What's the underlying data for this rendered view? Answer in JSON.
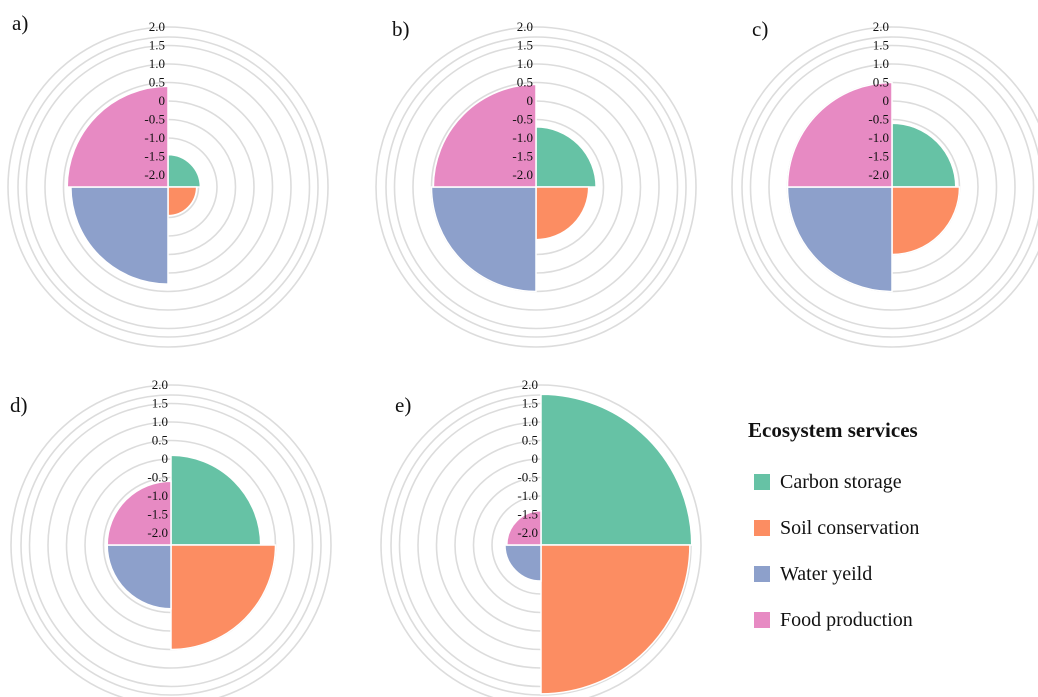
{
  "chart_data": [
    {
      "type": "polar-area",
      "panel_label": "a)",
      "categories": [
        "Carbon storage",
        "Soil conservation",
        "Water yeild",
        "Food production"
      ],
      "values": [
        -1.45,
        -1.55,
        0.3,
        0.4
      ],
      "r_ticks": [
        "2.0",
        "1.5",
        "1.0",
        "0.5",
        "0",
        "-0.5",
        "-1.0",
        "-1.5",
        "-2.0"
      ],
      "rlim": [
        -2.0,
        2.0
      ]
    },
    {
      "type": "polar-area",
      "panel_label": "b)",
      "categories": [
        "Carbon storage",
        "Soil conservation",
        "Water yeild",
        "Food production"
      ],
      "values": [
        -0.7,
        -0.9,
        0.5,
        0.45
      ],
      "r_ticks": [
        "2.0",
        "1.5",
        "1.0",
        "0.5",
        "0",
        "-0.5",
        "-1.0",
        "-1.5",
        "-2.0"
      ],
      "rlim": [
        -2.0,
        2.0
      ]
    },
    {
      "type": "polar-area",
      "panel_label": "c)",
      "categories": [
        "Carbon storage",
        "Soil conservation",
        "Water yeild",
        "Food production"
      ],
      "values": [
        -0.6,
        -0.5,
        0.5,
        0.5
      ],
      "r_ticks": [
        "2.0",
        "1.5",
        "1.0",
        "0.5",
        "0",
        "-0.5",
        "-1.0",
        "-1.5",
        "-2.0"
      ],
      "rlim": [
        -2.0,
        2.0
      ]
    },
    {
      "type": "polar-area",
      "panel_label": "d)",
      "categories": [
        "Carbon storage",
        "Soil conservation",
        "Water yeild",
        "Food production"
      ],
      "values": [
        0.1,
        0.5,
        -0.6,
        -0.6
      ],
      "r_ticks": [
        "2.0",
        "1.5",
        "1.0",
        "0.5",
        "0",
        "-0.5",
        "-1.0",
        "-1.5",
        "-2.0"
      ],
      "rlim": [
        -2.0,
        2.0
      ]
    },
    {
      "type": "polar-area",
      "panel_label": "e)",
      "categories": [
        "Carbon storage",
        "Soil conservation",
        "Water yeild",
        "Food production"
      ],
      "values": [
        1.75,
        1.7,
        -1.35,
        -1.4
      ],
      "r_ticks": [
        "2.0",
        "1.5",
        "1.0",
        "0.5",
        "0",
        "-0.5",
        "-1.0",
        "-1.5",
        "-2.0"
      ],
      "rlim": [
        -2.0,
        2.0
      ]
    }
  ],
  "legend": {
    "title": "Ecosystem services",
    "items": [
      {
        "label": "Carbon storage",
        "color": "#66c2a5"
      },
      {
        "label": "Soil conservation",
        "color": "#fc8d62"
      },
      {
        "label": "Water yeild",
        "color": "#8da0cb"
      },
      {
        "label": "Food production",
        "color": "#e78ac3"
      }
    ]
  }
}
